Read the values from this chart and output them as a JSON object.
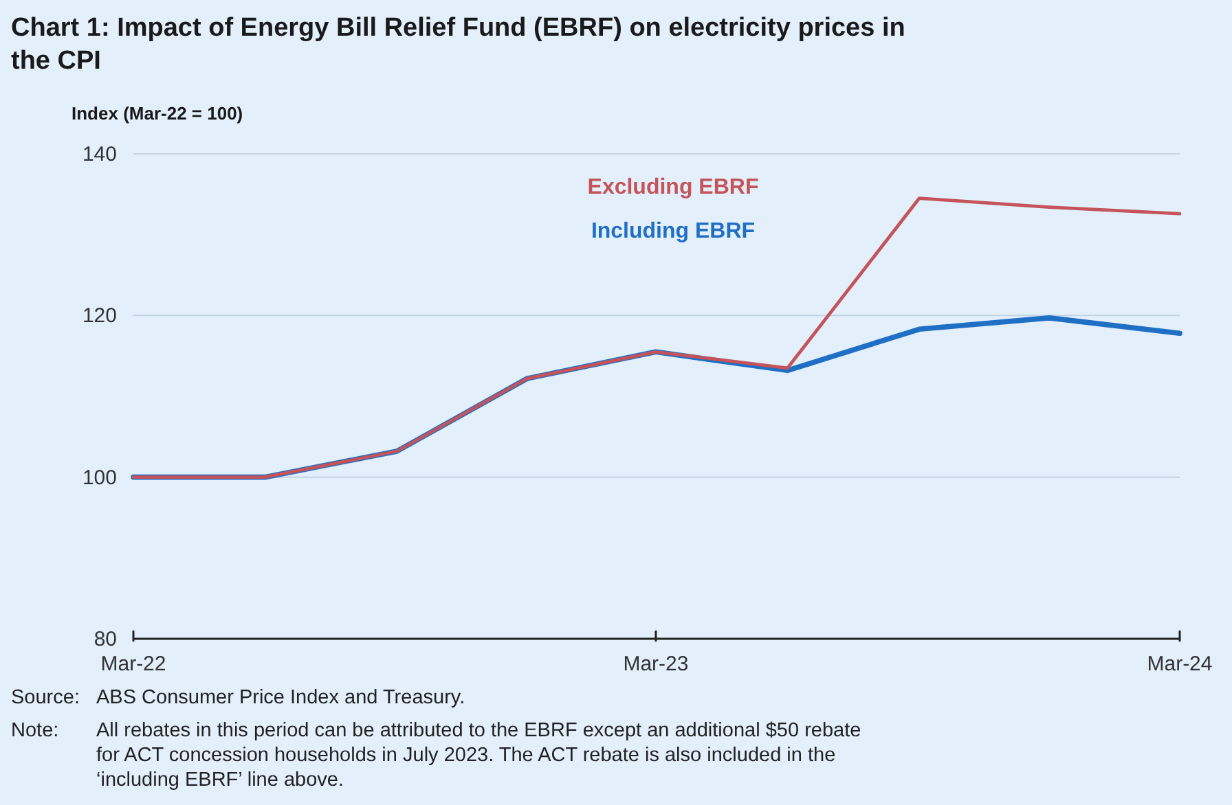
{
  "chart_data": {
    "type": "line",
    "title": "Chart 1: Impact of Energy Bill Relief Fund (EBRF) on electricity prices in the CPI",
    "ylabel": "Index (Mar-22 = 100)",
    "x": [
      "2022-03",
      "2022-06",
      "2022-09",
      "2022-12",
      "2023-03",
      "2023-06",
      "2023-09",
      "2023-12",
      "2024-03"
    ],
    "series": [
      {
        "name": "Excluding EBRF",
        "color": "#c4545a",
        "values": [
          100,
          100,
          103.2,
          112.2,
          115.5,
          113.5,
          134.5,
          133.4,
          132.6
        ]
      },
      {
        "name": "Including EBRF",
        "color": "#1f6fc5",
        "values": [
          100,
          100,
          103.2,
          112.2,
          115.5,
          113.2,
          118.3,
          119.7,
          117.8
        ]
      }
    ],
    "xlim": [
      "2022-03",
      "2024-03"
    ],
    "xticks": [
      {
        "value": "2022-03",
        "label": "Mar-22"
      },
      {
        "value": "2023-03",
        "label": "Mar-23"
      },
      {
        "value": "2024-03",
        "label": "Mar-24"
      }
    ],
    "ylim": [
      80,
      140
    ],
    "yticks": [
      80,
      100,
      120,
      140
    ],
    "grid": "y",
    "legend": "top",
    "annotations": [
      "Source: ABS Consumer Price Index and Treasury.",
      "Note: All rebates in this period can be attributed to the EBRF except an additional $50 rebate for ACT concession households in July 2023. The ACT rebate is also included in the ‘including EBRF’ line above."
    ]
  }
}
